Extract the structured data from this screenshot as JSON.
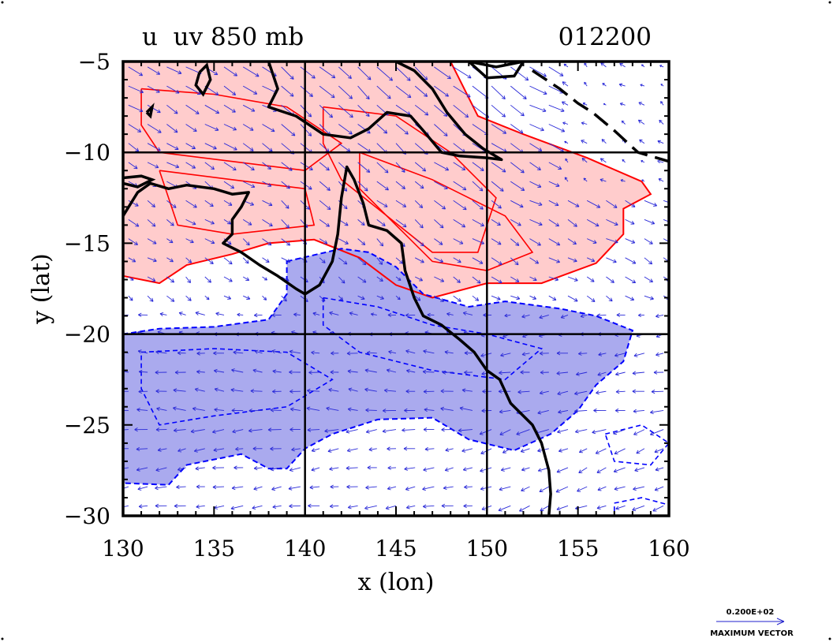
{
  "chart_data": {
    "type": "contour",
    "title": "u  uv 850 mb",
    "date_label": "012200",
    "xlabel": "x (lon)",
    "ylabel": "y (lat)",
    "xlim": [
      130,
      160
    ],
    "ylim": [
      -30,
      -5
    ],
    "x_ticks": [
      "130",
      "135",
      "140",
      "145",
      "150",
      "155",
      "160"
    ],
    "x_tick_values": [
      130,
      135,
      140,
      145,
      150,
      155,
      160
    ],
    "y_ticks": [
      "−5",
      "−10",
      "−15",
      "−20",
      "−25",
      "−30"
    ],
    "y_tick_values": [
      -5,
      -10,
      -15,
      -20,
      -25,
      -30
    ],
    "grid_lons": [
      140,
      150
    ],
    "grid_lats": [
      -10,
      -20
    ],
    "vector_legend": {
      "magnitude_label": "0.200E+02",
      "caption": "MAXIMUM VECTOR"
    },
    "fields": {
      "positive_u": {
        "color": "#ff0000",
        "fill": "#ffcccc",
        "lines": "solid",
        "outline": [
          [
            130.0,
            -5.0
          ],
          [
            148.0,
            -5.0
          ],
          [
            149.5,
            -8.0
          ],
          [
            152.0,
            -9.0
          ],
          [
            155.5,
            -10.3
          ],
          [
            158.5,
            -11.6
          ],
          [
            159.0,
            -12.3
          ],
          [
            157.5,
            -13.1
          ],
          [
            157.5,
            -14.5
          ],
          [
            156.0,
            -16.1
          ],
          [
            153.0,
            -17.2
          ],
          [
            150.0,
            -17.2
          ],
          [
            147.0,
            -18.0
          ],
          [
            145.0,
            -17.3
          ],
          [
            143.0,
            -15.8
          ],
          [
            140.5,
            -14.8
          ],
          [
            138.0,
            -15.0
          ],
          [
            136.0,
            -15.6
          ],
          [
            133.5,
            -16.2
          ],
          [
            132.0,
            -17.2
          ],
          [
            130.0,
            -16.8
          ]
        ],
        "inner_contours": [
          [
            [
              131.0,
              -6.5
            ],
            [
              135.0,
              -6.8
            ],
            [
              139.0,
              -7.5
            ],
            [
              142.0,
              -9.5
            ],
            [
              140.0,
              -11.0
            ],
            [
              136.0,
              -10.5
            ],
            [
              132.0,
              -10.0
            ],
            [
              131.0,
              -8.5
            ],
            [
              131.0,
              -6.5
            ]
          ],
          [
            [
              141.0,
              -7.5
            ],
            [
              145.0,
              -8.0
            ],
            [
              148.0,
              -10.0
            ],
            [
              150.5,
              -12.5
            ],
            [
              149.5,
              -15.5
            ],
            [
              147.0,
              -15.5
            ],
            [
              144.5,
              -13.5
            ],
            [
              142.0,
              -11.5
            ],
            [
              141.0,
              -9.5
            ],
            [
              141.0,
              -7.5
            ]
          ],
          [
            [
              143.0,
              -10.0
            ],
            [
              147.0,
              -11.5
            ],
            [
              151.0,
              -13.5
            ],
            [
              152.5,
              -15.5
            ],
            [
              150.0,
              -16.5
            ],
            [
              147.0,
              -16.0
            ],
            [
              145.0,
              -14.0
            ],
            [
              143.0,
              -12.0
            ],
            [
              143.0,
              -10.0
            ]
          ],
          [
            [
              132.0,
              -11.0
            ],
            [
              136.0,
              -11.5
            ],
            [
              140.0,
              -12.0
            ],
            [
              140.5,
              -14.0
            ],
            [
              136.0,
              -14.5
            ],
            [
              133.0,
              -14.0
            ],
            [
              132.0,
              -11.0
            ]
          ]
        ]
      },
      "negative_u": {
        "color": "#0000ff",
        "fill": "#aaaaee",
        "lines": "dashed",
        "outline": [
          [
            139.0,
            -16.0
          ],
          [
            142.0,
            -15.3
          ],
          [
            143.5,
            -15.5
          ],
          [
            145.0,
            -16.3
          ],
          [
            146.5,
            -17.8
          ],
          [
            149.0,
            -18.5
          ],
          [
            151.0,
            -18.2
          ],
          [
            154.0,
            -18.6
          ],
          [
            156.0,
            -19.0
          ],
          [
            158.0,
            -19.8
          ],
          [
            157.5,
            -21.5
          ],
          [
            156.0,
            -22.8
          ],
          [
            155.0,
            -24.2
          ],
          [
            153.5,
            -25.5
          ],
          [
            151.5,
            -26.4
          ],
          [
            149.0,
            -25.8
          ],
          [
            147.0,
            -24.6
          ],
          [
            144.0,
            -24.7
          ],
          [
            141.5,
            -25.5
          ],
          [
            140.0,
            -26.3
          ],
          [
            139.0,
            -27.4
          ],
          [
            138.0,
            -27.4
          ],
          [
            136.5,
            -26.6
          ],
          [
            133.5,
            -27.2
          ],
          [
            132.5,
            -28.3
          ],
          [
            130.0,
            -28.2
          ],
          [
            130.0,
            -20.0
          ],
          [
            132.0,
            -19.7
          ],
          [
            135.0,
            -19.6
          ],
          [
            138.0,
            -19.2
          ],
          [
            139.0,
            -17.8
          ]
        ],
        "inner_contours": [
          [
            [
              141.0,
              -18.0
            ],
            [
              144.0,
              -18.5
            ],
            [
              147.0,
              -19.5
            ],
            [
              150.0,
              -20.0
            ],
            [
              153.0,
              -20.8
            ],
            [
              151.0,
              -22.5
            ],
            [
              147.0,
              -22.0
            ],
            [
              143.0,
              -21.0
            ],
            [
              141.0,
              -19.5
            ],
            [
              141.0,
              -18.0
            ]
          ],
          [
            [
              131.0,
              -21.0
            ],
            [
              135.0,
              -20.8
            ],
            [
              139.0,
              -21.0
            ],
            [
              141.5,
              -22.5
            ],
            [
              139.0,
              -24.0
            ],
            [
              135.0,
              -24.5
            ],
            [
              132.0,
              -25.0
            ],
            [
              131.0,
              -23.0
            ],
            [
              131.0,
              -21.0
            ]
          ],
          [
            [
              156.5,
              -25.5
            ],
            [
              158.5,
              -25.0
            ],
            [
              160.0,
              -26.0
            ],
            [
              159.0,
              -27.2
            ],
            [
              157.0,
              -27.0
            ],
            [
              156.5,
              -25.5
            ]
          ],
          [
            [
              157.0,
              -29.3
            ],
            [
              158.5,
              -29.0
            ],
            [
              160.0,
              -29.4
            ],
            [
              160.0,
              -30.0
            ],
            [
              157.0,
              -30.0
            ],
            [
              157.0,
              -29.3
            ]
          ]
        ]
      }
    },
    "coastline": [
      [
        130.0,
        -13.5
      ],
      [
        130.8,
        -12.2
      ],
      [
        131.5,
        -11.7
      ],
      [
        132.5,
        -12.0
      ],
      [
        133.5,
        -11.8
      ],
      [
        135.0,
        -12.0
      ],
      [
        136.0,
        -12.3
      ],
      [
        136.9,
        -12.2
      ],
      [
        136.5,
        -13.0
      ],
      [
        136.0,
        -13.7
      ],
      [
        136.0,
        -14.5
      ],
      [
        135.5,
        -15.0
      ],
      [
        136.5,
        -15.5
      ],
      [
        137.5,
        -16.2
      ],
      [
        138.5,
        -16.8
      ],
      [
        139.5,
        -17.5
      ],
      [
        140.0,
        -17.8
      ],
      [
        140.8,
        -17.3
      ],
      [
        141.5,
        -16.0
      ],
      [
        141.8,
        -14.5
      ],
      [
        142.0,
        -12.5
      ],
      [
        142.3,
        -10.8
      ],
      [
        142.7,
        -11.5
      ],
      [
        143.2,
        -12.8
      ],
      [
        143.5,
        -14.0
      ],
      [
        144.5,
        -14.3
      ],
      [
        145.3,
        -15.0
      ],
      [
        145.5,
        -16.5
      ],
      [
        146.0,
        -18.0
      ],
      [
        146.5,
        -19.0
      ],
      [
        147.5,
        -19.5
      ],
      [
        148.5,
        -20.3
      ],
      [
        149.3,
        -21.0
      ],
      [
        150.0,
        -22.0
      ],
      [
        150.7,
        -22.5
      ],
      [
        151.3,
        -23.8
      ],
      [
        152.5,
        -25.0
      ],
      [
        153.0,
        -26.0
      ],
      [
        153.4,
        -27.5
      ],
      [
        153.5,
        -28.8
      ],
      [
        153.4,
        -30.0
      ]
    ],
    "new_guinea_coast": [
      [
        138.0,
        -5.0
      ],
      [
        138.5,
        -6.5
      ],
      [
        138.0,
        -7.5
      ],
      [
        139.5,
        -8.0
      ],
      [
        141.0,
        -9.0
      ],
      [
        142.5,
        -9.2
      ],
      [
        143.5,
        -8.7
      ],
      [
        144.5,
        -7.8
      ],
      [
        145.8,
        -8.0
      ],
      [
        146.5,
        -8.8
      ],
      [
        147.5,
        -10.0
      ],
      [
        148.5,
        -10.2
      ],
      [
        150.0,
        -10.3
      ],
      [
        150.8,
        -10.4
      ],
      [
        149.8,
        -9.8
      ],
      [
        148.8,
        -9.0
      ],
      [
        147.8,
        -7.8
      ],
      [
        147.0,
        -6.5
      ],
      [
        146.0,
        -5.5
      ],
      [
        145.0,
        -5.0
      ]
    ],
    "small_islands": [
      [
        [
          134.2,
          -5.6
        ],
        [
          134.6,
          -5.2
        ],
        [
          134.8,
          -6.0
        ],
        [
          134.4,
          -6.8
        ],
        [
          134.0,
          -6.3
        ],
        [
          134.2,
          -5.6
        ]
      ],
      [
        [
          131.3,
          -7.8
        ],
        [
          131.6,
          -7.5
        ],
        [
          131.5,
          -8.0
        ],
        [
          131.3,
          -7.8
        ]
      ],
      [
        [
          130.0,
          -11.4
        ],
        [
          131.0,
          -11.3
        ],
        [
          131.6,
          -11.5
        ],
        [
          130.8,
          -11.9
        ],
        [
          130.0,
          -11.7
        ]
      ],
      [
        [
          149.0,
          -5.0
        ],
        [
          150.5,
          -5.3
        ],
        [
          152.0,
          -5.0
        ],
        [
          151.5,
          -5.8
        ],
        [
          150.0,
          -5.9
        ],
        [
          149.0,
          -5.0
        ]
      ],
      [
        [
          152.5,
          -5.5
        ],
        [
          154.0,
          -6.5
        ],
        [
          155.0,
          -7.3
        ],
        [
          155.8,
          -7.8
        ],
        [
          157.0,
          -8.8
        ],
        [
          158.3,
          -10.0
        ],
        [
          160.0,
          -10.5
        ]
      ]
    ]
  }
}
